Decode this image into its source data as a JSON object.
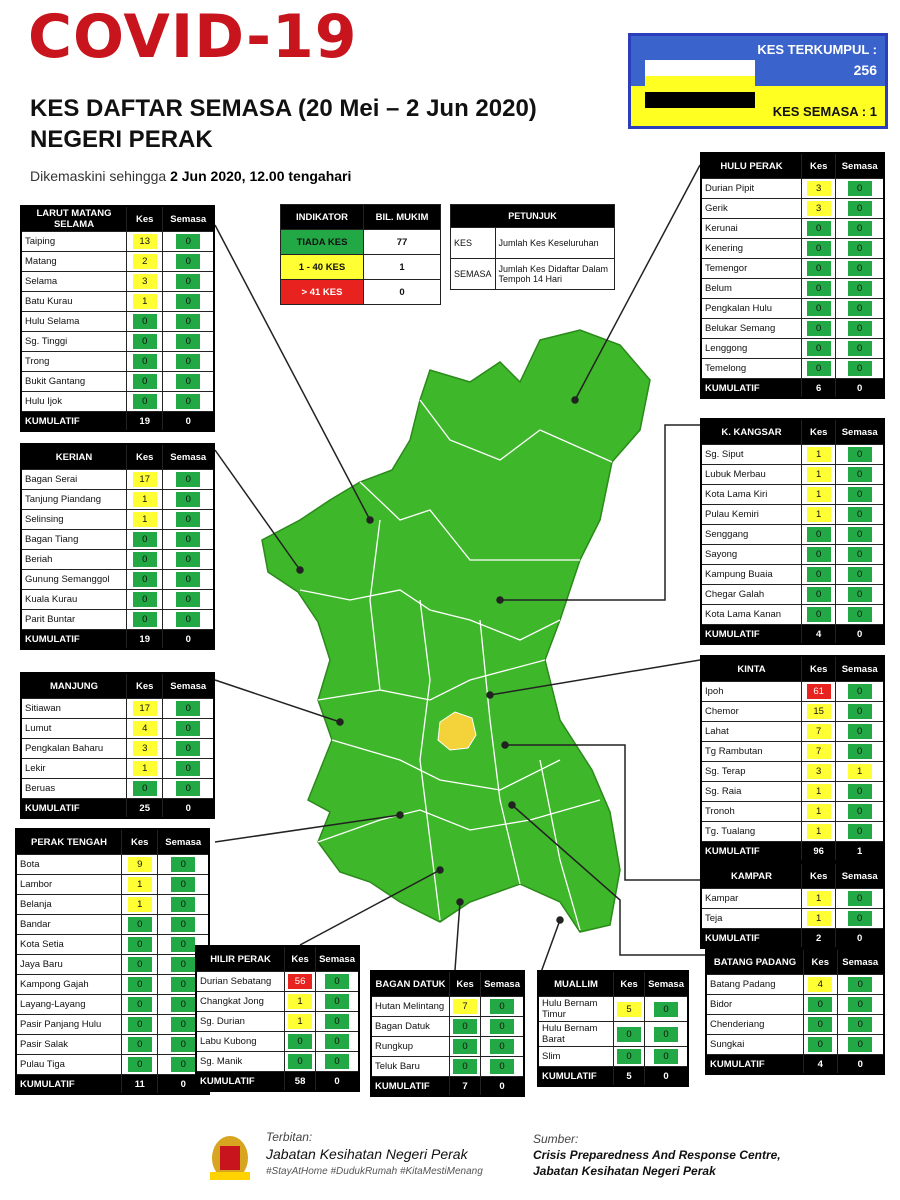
{
  "header": {
    "title": "COVID-19",
    "subtitle": "KES DAFTAR SEMASA (20 Mei – 2 Jun 2020)",
    "state": "NEGERI PERAK",
    "updated_prefix": "Dikemaskini sehingga",
    "updated_date": "2 Jun 2020, 12.00 tengahari"
  },
  "summary": {
    "total_label": "KES TERKUMPUL :",
    "total": 256,
    "current_label": "KES SEMASA :",
    "current": 1
  },
  "indicator": {
    "headers": [
      "INDIKATOR",
      "BIL. MUKIM"
    ],
    "rows": [
      {
        "label": "TIADA KES",
        "count": 77,
        "color": "#22a845"
      },
      {
        "label": "1 - 40 KES",
        "count": 1,
        "color": "#ffff33"
      },
      {
        "label": "> 41 KES",
        "count": 0,
        "color": "#e8231f"
      }
    ]
  },
  "legend": {
    "header": "PETUNJUK",
    "rows": [
      [
        "KES",
        "Jumlah Kes Keseluruhan"
      ],
      [
        "SEMASA",
        "Jumlah Kes Didaftar Dalam Tempoh 14 Hari"
      ]
    ]
  },
  "districts": [
    {
      "name": "LARUT MATANG SELAMA",
      "headers": [
        "Kes",
        "Semasa"
      ],
      "rows": [
        {
          "name": "Taiping",
          "kes": 13,
          "semasa": 0
        },
        {
          "name": "Matang",
          "kes": 2,
          "semasa": 0
        },
        {
          "name": "Selama",
          "kes": 3,
          "semasa": 0
        },
        {
          "name": "Batu Kurau",
          "kes": 1,
          "semasa": 0
        },
        {
          "name": "Hulu Selama",
          "kes": 0,
          "semasa": 0
        },
        {
          "name": "Sg. Tinggi",
          "kes": 0,
          "semasa": 0
        },
        {
          "name": "Trong",
          "kes": 0,
          "semasa": 0
        },
        {
          "name": "Bukit Gantang",
          "kes": 0,
          "semasa": 0
        },
        {
          "name": "Hulu Ijok",
          "kes": 0,
          "semasa": 0
        }
      ],
      "total_label": "KUMULATIF",
      "total_kes": 19,
      "total_semasa": 0
    },
    {
      "name": "KERIAN",
      "headers": [
        "Kes",
        "Semasa"
      ],
      "rows": [
        {
          "name": "Bagan Serai",
          "kes": 17,
          "semasa": 0
        },
        {
          "name": "Tanjung Piandang",
          "kes": 1,
          "semasa": 0
        },
        {
          "name": "Selinsing",
          "kes": 1,
          "semasa": 0
        },
        {
          "name": "Bagan Tiang",
          "kes": 0,
          "semasa": 0
        },
        {
          "name": "Beriah",
          "kes": 0,
          "semasa": 0
        },
        {
          "name": "Gunung Semanggol",
          "kes": 0,
          "semasa": 0
        },
        {
          "name": "Kuala Kurau",
          "kes": 0,
          "semasa": 0
        },
        {
          "name": "Parit Buntar",
          "kes": 0,
          "semasa": 0
        }
      ],
      "total_label": "KUMULATIF",
      "total_kes": 19,
      "total_semasa": 0
    },
    {
      "name": "MANJUNG",
      "headers": [
        "Kes",
        "Semasa"
      ],
      "rows": [
        {
          "name": "Sitiawan",
          "kes": 17,
          "semasa": 0
        },
        {
          "name": "Lumut",
          "kes": 4,
          "semasa": 0
        },
        {
          "name": "Pengkalan Baharu",
          "kes": 3,
          "semasa": 0
        },
        {
          "name": "Lekir",
          "kes": 1,
          "semasa": 0
        },
        {
          "name": "Beruas",
          "kes": 0,
          "semasa": 0
        }
      ],
      "total_label": "KUMULATIF",
      "total_kes": 25,
      "total_semasa": 0
    },
    {
      "name": "PERAK TENGAH",
      "headers": [
        "Kes",
        "Semasa"
      ],
      "rows": [
        {
          "name": "Bota",
          "kes": 9,
          "semasa": 0
        },
        {
          "name": "Lambor",
          "kes": 1,
          "semasa": 0
        },
        {
          "name": "Belanja",
          "kes": 1,
          "semasa": 0
        },
        {
          "name": "Bandar",
          "kes": 0,
          "semasa": 0
        },
        {
          "name": "Kota Setia",
          "kes": 0,
          "semasa": 0
        },
        {
          "name": "Jaya Baru",
          "kes": 0,
          "semasa": 0
        },
        {
          "name": "Kampong Gajah",
          "kes": 0,
          "semasa": 0
        },
        {
          "name": "Layang-Layang",
          "kes": 0,
          "semasa": 0
        },
        {
          "name": "Pasir Panjang Hulu",
          "kes": 0,
          "semasa": 0
        },
        {
          "name": "Pasir Salak",
          "kes": 0,
          "semasa": 0
        },
        {
          "name": "Pulau Tiga",
          "kes": 0,
          "semasa": 0
        }
      ],
      "total_label": "KUMULATIF",
      "total_kes": 11,
      "total_semasa": 0
    },
    {
      "name": "HILIR PERAK",
      "headers": [
        "Kes",
        "Semasa"
      ],
      "rows": [
        {
          "name": "Durian Sebatang",
          "kes": 56,
          "semasa": 0
        },
        {
          "name": "Changkat Jong",
          "kes": 1,
          "semasa": 0
        },
        {
          "name": "Sg. Durian",
          "kes": 1,
          "semasa": 0
        },
        {
          "name": "Labu Kubong",
          "kes": 0,
          "semasa": 0
        },
        {
          "name": "Sg. Manik",
          "kes": 0,
          "semasa": 0
        }
      ],
      "total_label": "KUMULATIF",
      "total_kes": 58,
      "total_semasa": 0
    },
    {
      "name": "BAGAN DATUK",
      "headers": [
        "Kes",
        "Semasa"
      ],
      "rows": [
        {
          "name": "Hutan Melintang",
          "kes": 7,
          "semasa": 0
        },
        {
          "name": "Bagan Datuk",
          "kes": 0,
          "semasa": 0
        },
        {
          "name": "Rungkup",
          "kes": 0,
          "semasa": 0
        },
        {
          "name": "Teluk Baru",
          "kes": 0,
          "semasa": 0
        }
      ],
      "total_label": "KUMULATIF",
      "total_kes": 7,
      "total_semasa": 0
    },
    {
      "name": "MUALLIM",
      "headers": [
        "Kes",
        "Semasa"
      ],
      "rows": [
        {
          "name": "Hulu Bernam Timur",
          "kes": 5,
          "semasa": 0
        },
        {
          "name": "Hulu Bernam Barat",
          "kes": 0,
          "semasa": 0
        },
        {
          "name": "Slim",
          "kes": 0,
          "semasa": 0
        }
      ],
      "total_label": "KUMULATIF",
      "total_kes": 5,
      "total_semasa": 0
    },
    {
      "name": "BATANG PADANG",
      "headers": [
        "Kes",
        "Semasa"
      ],
      "rows": [
        {
          "name": "Batang Padang",
          "kes": 4,
          "semasa": 0
        },
        {
          "name": "Bidor",
          "kes": 0,
          "semasa": 0
        },
        {
          "name": "Chenderiang",
          "kes": 0,
          "semasa": 0
        },
        {
          "name": "Sungkai",
          "kes": 0,
          "semasa": 0
        }
      ],
      "total_label": "KUMULATIF",
      "total_kes": 4,
      "total_semasa": 0
    },
    {
      "name": "HULU PERAK",
      "headers": [
        "Kes",
        "Semasa"
      ],
      "rows": [
        {
          "name": "Durian Pipit",
          "kes": 3,
          "semasa": 0
        },
        {
          "name": "Gerik",
          "kes": 3,
          "semasa": 0
        },
        {
          "name": "Kerunai",
          "kes": 0,
          "semasa": 0
        },
        {
          "name": "Kenering",
          "kes": 0,
          "semasa": 0
        },
        {
          "name": "Temengor",
          "kes": 0,
          "semasa": 0
        },
        {
          "name": "Belum",
          "kes": 0,
          "semasa": 0
        },
        {
          "name": "Pengkalan Hulu",
          "kes": 0,
          "semasa": 0
        },
        {
          "name": "Belukar Semang",
          "kes": 0,
          "semasa": 0
        },
        {
          "name": "Lenggong",
          "kes": 0,
          "semasa": 0
        },
        {
          "name": "Temelong",
          "kes": 0,
          "semasa": 0
        }
      ],
      "total_label": "KUMULATIF",
      "total_kes": 6,
      "total_semasa": 0
    },
    {
      "name": "K. KANGSAR",
      "headers": [
        "Kes",
        "Semasa"
      ],
      "rows": [
        {
          "name": "Sg. Siput",
          "kes": 1,
          "semasa": 0
        },
        {
          "name": "Lubuk Merbau",
          "kes": 1,
          "semasa": 0
        },
        {
          "name": "Kota Lama Kiri",
          "kes": 1,
          "semasa": 0
        },
        {
          "name": "Pulau Kemiri",
          "kes": 1,
          "semasa": 0
        },
        {
          "name": "Senggang",
          "kes": 0,
          "semasa": 0
        },
        {
          "name": "Sayong",
          "kes": 0,
          "semasa": 0
        },
        {
          "name": "Kampung Buaia",
          "kes": 0,
          "semasa": 0
        },
        {
          "name": "Chegar Galah",
          "kes": 0,
          "semasa": 0
        },
        {
          "name": "Kota Lama Kanan",
          "kes": 0,
          "semasa": 0
        }
      ],
      "total_label": "KUMULATIF",
      "total_kes": 4,
      "total_semasa": 0
    },
    {
      "name": "KINTA",
      "headers": [
        "Kes",
        "Semasa"
      ],
      "rows": [
        {
          "name": "Ipoh",
          "kes": 61,
          "semasa": 0
        },
        {
          "name": "Chemor",
          "kes": 15,
          "semasa": 0
        },
        {
          "name": "Lahat",
          "kes": 7,
          "semasa": 0
        },
        {
          "name": "Tg Rambutan",
          "kes": 7,
          "semasa": 0
        },
        {
          "name": "Sg. Terap",
          "kes": 3,
          "semasa": 1
        },
        {
          "name": "Sg. Raia",
          "kes": 1,
          "semasa": 0
        },
        {
          "name": "Tronoh",
          "kes": 1,
          "semasa": 0
        },
        {
          "name": "Tg. Tualang",
          "kes": 1,
          "semasa": 0
        }
      ],
      "total_label": "KUMULATIF",
      "total_kes": 96,
      "total_semasa": 1
    },
    {
      "name": "KAMPAR",
      "headers": [
        "Kes",
        "Semasa"
      ],
      "rows": [
        {
          "name": "Kampar",
          "kes": 1,
          "semasa": 0
        },
        {
          "name": "Teja",
          "kes": 1,
          "semasa": 0
        }
      ],
      "total_label": "KUMULATIF",
      "total_kes": 2,
      "total_semasa": 0
    }
  ],
  "footer": {
    "publisher_label": "Terbitan:",
    "publisher": "Jabatan Kesihatan Negeri Perak",
    "hashtags": "#StayAtHome #DudukRumah #KitaMestiMenang",
    "source_label": "Sumber:",
    "source_lines": [
      "Crisis Preparedness And Response Centre,",
      "Jabatan Kesihatan Negeri Perak"
    ]
  }
}
